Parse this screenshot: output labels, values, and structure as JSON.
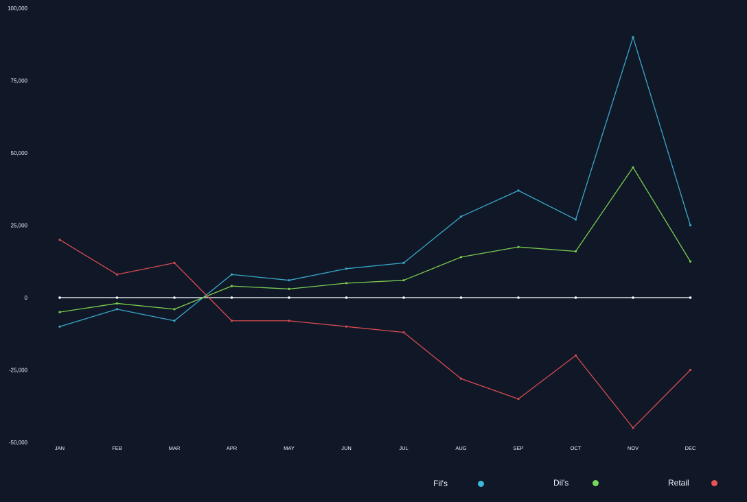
{
  "chart_data": {
    "type": "line",
    "categories": [
      "JAN",
      "FEB",
      "MAR",
      "APR",
      "MAY",
      "JUN",
      "JUL",
      "AUG",
      "SEP",
      "OCT",
      "NOV",
      "DEC"
    ],
    "yticks": [
      "100,000",
      "75,000",
      "50,000",
      "25,000",
      "0",
      "-25,000",
      "-50,000"
    ],
    "ytick_values": [
      100000,
      75000,
      50000,
      25000,
      0,
      -25000,
      -50000
    ],
    "ylim": [
      -50000,
      100000
    ],
    "grid": false,
    "legend_position": "bottom-right",
    "zero_line_color": "#d9dde3",
    "series": [
      {
        "name": "Fil's",
        "color": "#3aa7c9",
        "values": [
          -10000,
          -4000,
          -8000,
          8000,
          6000,
          10000,
          12000,
          28000,
          37000,
          27000,
          90000,
          25000
        ]
      },
      {
        "name": "Dil's",
        "color": "#7ccc4f",
        "values": [
          -5000,
          -2000,
          -4000,
          4000,
          3000,
          5000,
          6000,
          14000,
          17500,
          16000,
          45000,
          12500
        ]
      },
      {
        "name": "Retail",
        "color": "#d84a4e",
        "values": [
          20000,
          8000,
          12000,
          -8000,
          -8000,
          -10000,
          -12000,
          -28000,
          -35000,
          -20000,
          -45000,
          -25000
        ]
      }
    ]
  }
}
